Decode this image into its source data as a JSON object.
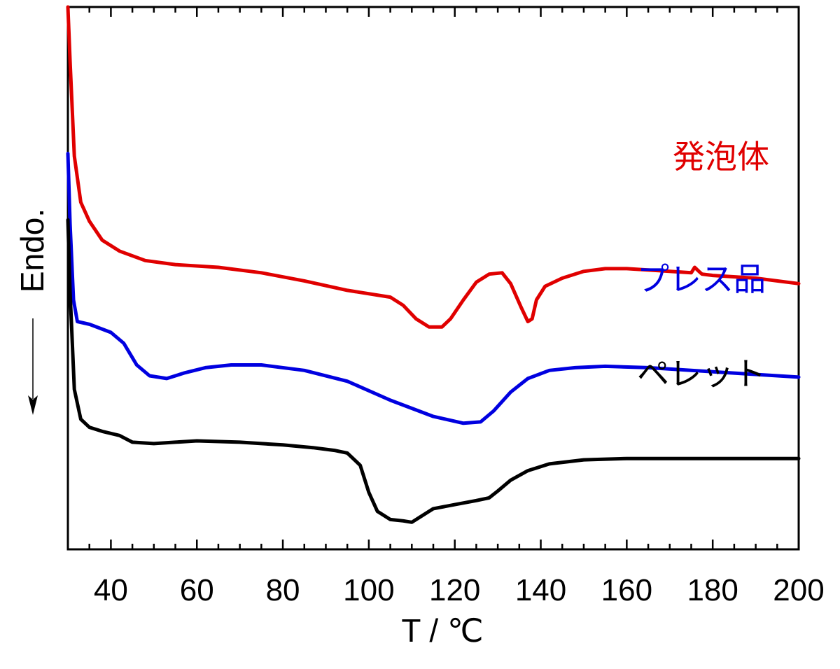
{
  "chart_data": {
    "type": "line",
    "xlabel": "T / ℃",
    "ylabel": "Endo.",
    "xlim": [
      30,
      200
    ],
    "xticks": [
      40,
      60,
      80,
      100,
      120,
      140,
      160,
      180,
      200
    ],
    "xticks_minor_step": 5,
    "grid": false,
    "y_axis_units": "relative heat flow (endothermic down), offset curves, no tick labels",
    "series": [
      {
        "name": "発泡体",
        "color": "#e00000",
        "points": [
          [
            30.0,
            -6.5
          ],
          [
            30.5,
            20
          ],
          [
            31.5,
            55
          ],
          [
            33,
            72
          ],
          [
            35,
            79
          ],
          [
            38,
            86
          ],
          [
            42,
            90
          ],
          [
            48,
            93.5
          ],
          [
            55,
            95
          ],
          [
            65,
            96
          ],
          [
            75,
            98
          ],
          [
            85,
            101
          ],
          [
            95,
            104.5
          ],
          [
            105,
            107
          ],
          [
            108,
            110
          ],
          [
            111,
            115
          ],
          [
            114,
            118
          ],
          [
            117,
            118
          ],
          [
            119,
            115
          ],
          [
            122,
            108
          ],
          [
            125,
            101.5
          ],
          [
            128,
            98.5
          ],
          [
            131,
            98
          ],
          [
            133,
            102
          ],
          [
            135.5,
            111
          ],
          [
            137,
            116
          ],
          [
            138,
            115
          ],
          [
            139,
            108
          ],
          [
            141,
            103
          ],
          [
            145,
            100
          ],
          [
            150,
            97.5
          ],
          [
            155,
            96.5
          ],
          [
            160,
            96.5
          ],
          [
            170,
            97.5
          ],
          [
            175,
            98
          ],
          [
            175.8,
            96
          ],
          [
            176.8,
            97.5
          ],
          [
            177.5,
            98.5
          ],
          [
            180,
            99
          ],
          [
            190,
            100
          ],
          [
            200,
            102
          ]
        ]
      },
      {
        "name": "プレス品",
        "color": "#0000e0",
        "points": [
          [
            30.0,
            54
          ],
          [
            30.5,
            80
          ],
          [
            31.3,
            108
          ],
          [
            32.2,
            116
          ],
          [
            35,
            117
          ],
          [
            40,
            120
          ],
          [
            43,
            124
          ],
          [
            46,
            132
          ],
          [
            49,
            136
          ],
          [
            53,
            137
          ],
          [
            57,
            135
          ],
          [
            62,
            133
          ],
          [
            68,
            132
          ],
          [
            75,
            132
          ],
          [
            85,
            134
          ],
          [
            95,
            138
          ],
          [
            105,
            145
          ],
          [
            115,
            151
          ],
          [
            122,
            153.5
          ],
          [
            126,
            153
          ],
          [
            129,
            149
          ],
          [
            133,
            142
          ],
          [
            137,
            137
          ],
          [
            142,
            134
          ],
          [
            148,
            133
          ],
          [
            155,
            132.5
          ],
          [
            165,
            133
          ],
          [
            180,
            134.5
          ],
          [
            200,
            136.5
          ]
        ]
      },
      {
        "name": "ペレット",
        "color": "#000000",
        "points": [
          [
            30.0,
            78.5
          ],
          [
            30.5,
            105
          ],
          [
            31.5,
            141
          ],
          [
            33,
            152
          ],
          [
            35,
            155
          ],
          [
            38,
            156.5
          ],
          [
            42,
            158
          ],
          [
            45,
            160.5
          ],
          [
            50,
            161
          ],
          [
            55,
            160.5
          ],
          [
            60,
            160
          ],
          [
            70,
            160.5
          ],
          [
            80,
            161.5
          ],
          [
            87,
            162.5
          ],
          [
            92,
            163.5
          ],
          [
            95,
            164.5
          ],
          [
            98,
            169
          ],
          [
            100,
            179
          ],
          [
            102,
            186
          ],
          [
            105,
            189
          ],
          [
            108,
            189.5
          ],
          [
            110,
            190
          ],
          [
            112,
            188
          ],
          [
            115,
            185
          ],
          [
            120,
            183.5
          ],
          [
            125,
            182
          ],
          [
            128,
            181
          ],
          [
            130,
            178.5
          ],
          [
            133,
            174.5
          ],
          [
            137,
            171
          ],
          [
            142,
            168.5
          ],
          [
            150,
            167
          ],
          [
            160,
            166.5
          ],
          [
            175,
            166.5
          ],
          [
            190,
            166.5
          ],
          [
            200,
            166.5
          ]
        ]
      }
    ],
    "legend_labels": [
      {
        "series": 0,
        "text": "発泡体",
        "color": "#e00000"
      },
      {
        "series": 1,
        "text": "プレス品",
        "color": "#0000e0"
      },
      {
        "series": 2,
        "text": "ペレット",
        "color": "#000000"
      }
    ],
    "y_axis_arrow": "down"
  }
}
